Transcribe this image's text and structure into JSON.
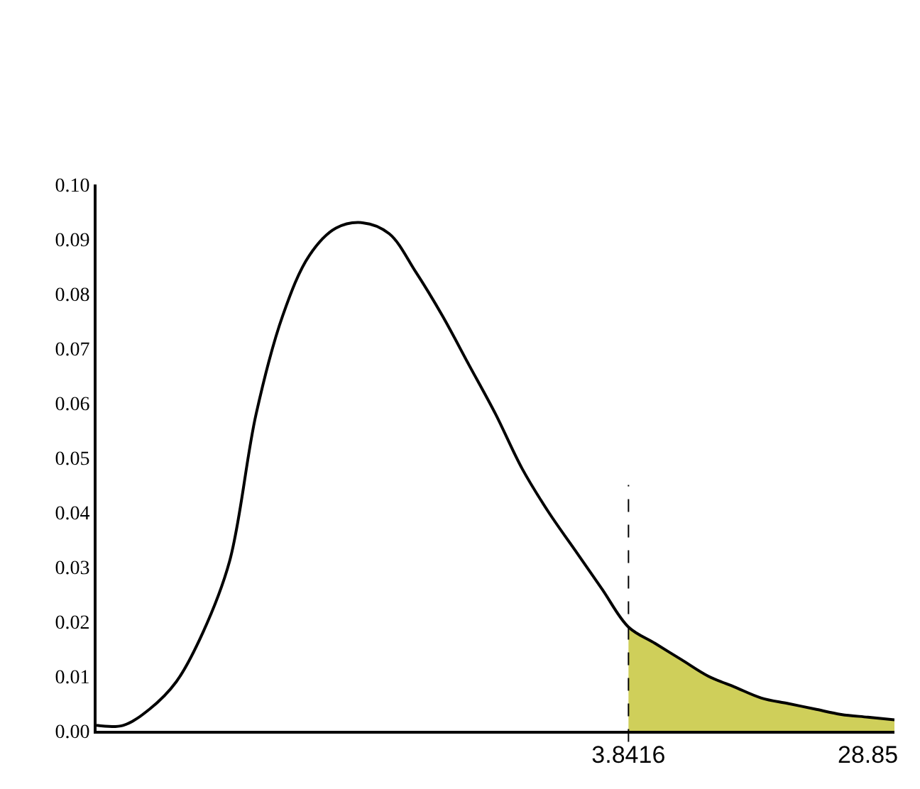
{
  "chart_data": {
    "type": "line",
    "categories": [
      null,
      null,
      null,
      null,
      null,
      null,
      null,
      null,
      null,
      null,
      null,
      null,
      null,
      null,
      null,
      null,
      null,
      null,
      null,
      null,
      "3.8416",
      null,
      null,
      null,
      null,
      null,
      null,
      null,
      null,
      "28.85",
      null
    ],
    "series": [
      {
        "color": "#000000",
        "values": [
          0.001,
          0.001,
          0.004,
          0.009,
          0.018,
          0.031,
          0.058,
          0.076,
          0.087,
          0.092,
          0.093,
          0.091,
          0.084,
          0.076,
          0.067,
          0.058,
          0.048,
          0.04,
          0.033,
          0.026,
          0.019,
          0.016,
          0.013,
          0.01,
          0.008,
          0.006,
          0.005,
          0.004,
          0.003,
          0.0025,
          0.002
        ]
      },
      {
        "type": "area",
        "color": "#cfcf5a",
        "values": [
          null,
          null,
          null,
          null,
          null,
          null,
          null,
          null,
          null,
          null,
          null,
          null,
          null,
          null,
          null,
          null,
          null,
          null,
          null,
          null,
          0.019,
          0.016,
          0.013,
          0.01,
          0.008,
          0.006,
          0.005,
          0.004,
          0.003,
          0.0025,
          0.002
        ]
      }
    ],
    "ylim": [
      0,
      0.1
    ],
    "yticks": [
      {
        "value": 0,
        "label": "0.00"
      },
      {
        "value": 0.01,
        "label": "0.01"
      },
      {
        "value": 0.02,
        "label": "0.02"
      },
      {
        "value": 0.03,
        "label": "0.03"
      },
      {
        "value": 0.04,
        "label": "0.04"
      },
      {
        "value": 0.05,
        "label": "0.05"
      },
      {
        "value": 0.06,
        "label": "0.06"
      },
      {
        "value": 0.07,
        "label": "0.07"
      },
      {
        "value": 0.08,
        "label": "0.08"
      },
      {
        "value": 0.09,
        "label": "0.09"
      },
      {
        "value": 0.1,
        "label": "0.10"
      }
    ],
    "ref_lines": [
      {
        "axis": "x",
        "value": "3.8416",
        "line_style": "dashed",
        "color": "#000000"
      }
    ],
    "grid": false
  }
}
